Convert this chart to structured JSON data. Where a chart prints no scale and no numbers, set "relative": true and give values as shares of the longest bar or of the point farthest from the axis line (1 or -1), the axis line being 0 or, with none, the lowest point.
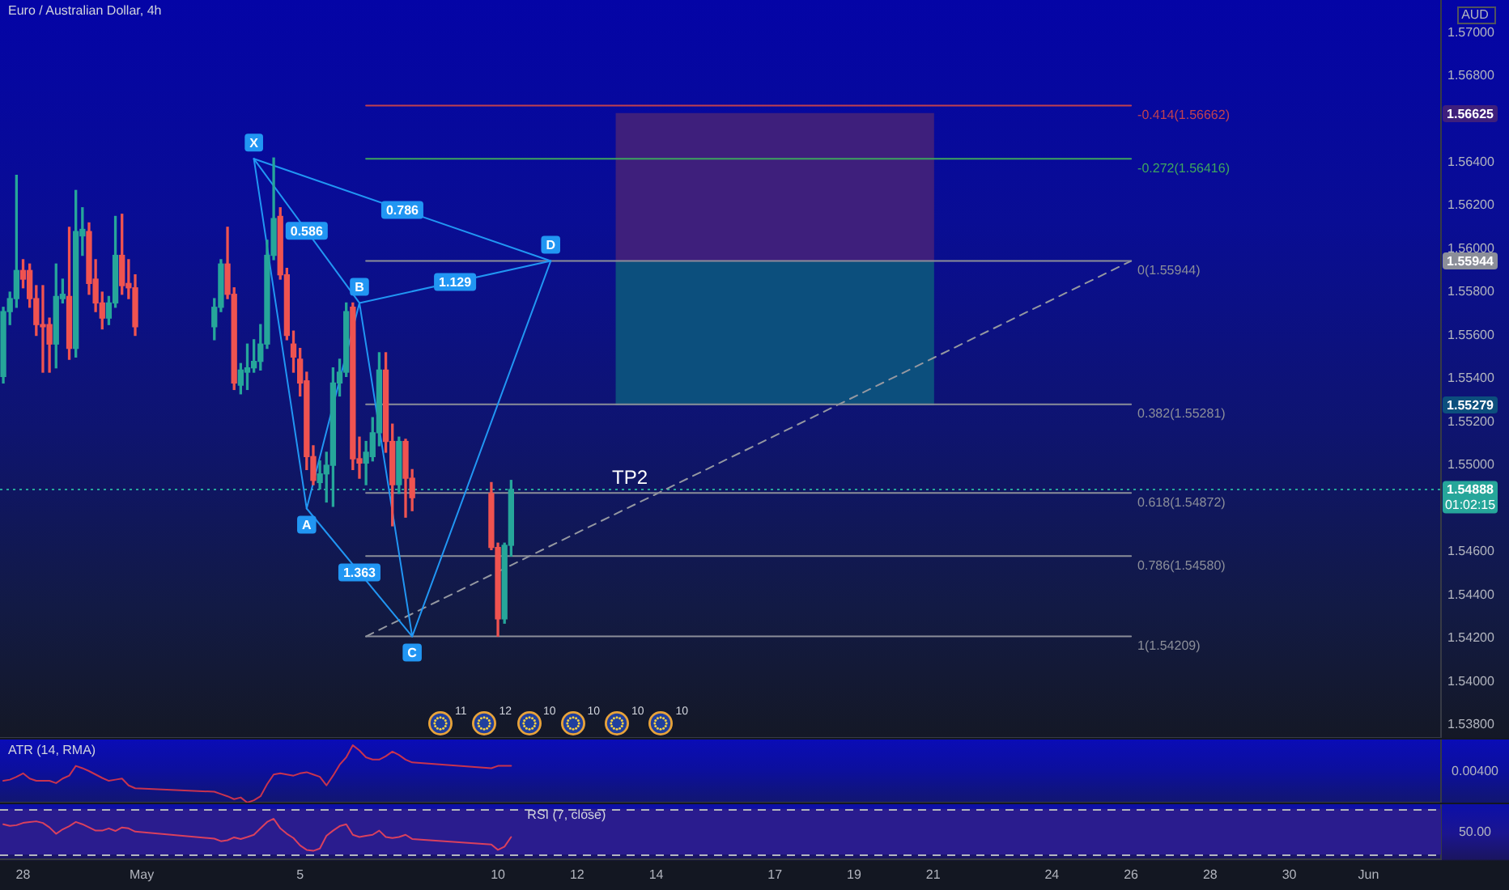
{
  "chart_data": [
    {
      "type": "candlestick",
      "title": "Euro / Australian Dollar, 4h",
      "x": [
        "--04-27T12:00",
        "--04-27T16:00",
        "--04-27T20:00",
        "--04-28T00:00",
        "--04-28T04:00",
        "--04-28T08:00",
        "--04-28T12:00",
        "--04-28T16:00",
        "--04-28T20:00",
        "--04-29T00:00",
        "--04-29T04:00",
        "--04-29T08:00",
        "--04-29T12:00",
        "--04-29T16:00",
        "--04-29T20:00",
        "--04-30T00:00",
        "--04-30T04:00",
        "--04-30T08:00",
        "--04-30T12:00",
        "--04-30T16:00",
        "--04-30T20:00",
        "--05-02T20:00",
        "--05-03T00:00",
        "--05-03T04:00",
        "--05-03T08:00",
        "--05-03T12:00",
        "--05-03T16:00",
        "--05-03T20:00",
        "--05-04T00:00",
        "--05-04T04:00",
        "--05-04T08:00",
        "--05-04T12:00",
        "--05-04T16:00",
        "--05-04T20:00",
        "--05-05T00:00",
        "--05-05T04:00",
        "--05-05T08:00",
        "--05-05T12:00",
        "--05-05T16:00",
        "--05-05T20:00",
        "--05-06T00:00",
        "--05-06T04:00",
        "--05-06T08:00",
        "--05-06T12:00",
        "--05-06T16:00",
        "--05-06T20:00",
        "--05-07T00:00",
        "--05-07T04:00",
        "--05-07T08:00",
        "--05-07T12:00",
        "--05-07T16:00",
        "--05-07T20:00",
        "--05-09T20:00",
        "--05-10T00:00",
        "--05-10T04:00",
        "--05-10T08:00"
      ],
      "ohlc": [
        [
          1.5541,
          1.5573,
          1.5538,
          1.5571
        ],
        [
          1.5571,
          1.558,
          1.5565,
          1.5577
        ],
        [
          1.5577,
          1.5634,
          1.5573,
          1.559
        ],
        [
          1.559,
          1.5595,
          1.5582,
          1.5586
        ],
        [
          1.559,
          1.5593,
          1.5573,
          1.5577
        ],
        [
          1.5577,
          1.5583,
          1.556,
          1.5565
        ],
        [
          1.5565,
          1.5583,
          1.5543,
          1.5564
        ],
        [
          1.5565,
          1.5568,
          1.5543,
          1.5556
        ],
        [
          1.5556,
          1.5593,
          1.5545,
          1.5578
        ],
        [
          1.5577,
          1.5586,
          1.5575,
          1.5579
        ],
        [
          1.5578,
          1.561,
          1.5549,
          1.5554
        ],
        [
          1.5554,
          1.5627,
          1.555,
          1.5608
        ],
        [
          1.5606,
          1.5619,
          1.5597,
          1.5609
        ],
        [
          1.5608,
          1.5612,
          1.5579,
          1.5584
        ],
        [
          1.5586,
          1.5595,
          1.5571,
          1.5575
        ],
        [
          1.5575,
          1.558,
          1.5563,
          1.5568
        ],
        [
          1.5568,
          1.5578,
          1.5565,
          1.5575
        ],
        [
          1.5575,
          1.5615,
          1.5573,
          1.5597
        ],
        [
          1.5597,
          1.5616,
          1.5579,
          1.5583
        ],
        [
          1.5584,
          1.5595,
          1.5577,
          1.5582
        ],
        [
          1.5582,
          1.5588,
          1.556,
          1.5564
        ],
        [
          1.5564,
          1.5577,
          1.5558,
          1.5573
        ],
        [
          1.5573,
          1.5595,
          1.5571,
          1.5593
        ],
        [
          1.5593,
          1.561,
          1.5577,
          1.5579
        ],
        [
          1.5579,
          1.5582,
          1.5535,
          1.5538
        ],
        [
          1.5537,
          1.5547,
          1.5533,
          1.5544
        ],
        [
          1.5543,
          1.5556,
          1.5535,
          1.5545
        ],
        [
          1.5545,
          1.5558,
          1.5543,
          1.5548
        ],
        [
          1.5548,
          1.5565,
          1.5544,
          1.5556
        ],
        [
          1.5556,
          1.5604,
          1.5554,
          1.5597
        ],
        [
          1.5597,
          1.5642,
          1.5595,
          1.5614
        ],
        [
          1.5615,
          1.5619,
          1.5586,
          1.5588
        ],
        [
          1.5588,
          1.5591,
          1.5558,
          1.556
        ],
        [
          1.5556,
          1.5562,
          1.5543,
          1.555
        ],
        [
          1.5549,
          1.5554,
          1.5532,
          1.5538
        ],
        [
          1.5539,
          1.5543,
          1.5498,
          1.5504
        ],
        [
          1.5504,
          1.5509,
          1.5491,
          1.5493
        ],
        [
          1.5492,
          1.5502,
          1.5489,
          1.5496
        ],
        [
          1.5496,
          1.5506,
          1.5483,
          1.55
        ],
        [
          1.55,
          1.5545,
          1.5481,
          1.5538
        ],
        [
          1.5538,
          1.5549,
          1.5532,
          1.5543
        ],
        [
          1.5543,
          1.5575,
          1.5541,
          1.5571
        ],
        [
          1.5573,
          1.5575,
          1.5498,
          1.5503
        ],
        [
          1.5503,
          1.5513,
          1.5494,
          1.5501
        ],
        [
          1.5501,
          1.5511,
          1.5491,
          1.5506
        ],
        [
          1.5504,
          1.5522,
          1.5502,
          1.5515
        ],
        [
          1.5515,
          1.5552,
          1.5509,
          1.5544
        ],
        [
          1.5544,
          1.5552,
          1.5506,
          1.5511
        ],
        [
          1.5511,
          1.5519,
          1.5472,
          1.5491
        ],
        [
          1.5491,
          1.5513,
          1.5487,
          1.5511
        ],
        [
          1.5511,
          1.5512,
          1.5476,
          1.5494
        ],
        [
          1.5494,
          1.5498,
          1.5479,
          1.5485
        ],
        [
          1.5487,
          1.5492,
          1.5461,
          1.5462
        ],
        [
          1.5462,
          1.5464,
          1.5421,
          1.5429
        ],
        [
          1.5429,
          1.5464,
          1.5427,
          1.5463
        ],
        [
          1.5463,
          1.5493,
          1.5458,
          1.54888
        ]
      ],
      "colors": [
        "#26a69a",
        "#26a69a",
        "#26a69a",
        "#ef5350",
        "#ef5350",
        "#ef5350",
        "#ef5350",
        "#ef5350",
        "#26a69a",
        "#26a69a",
        "#ef5350",
        "#26a69a",
        "#26a69a",
        "#ef5350",
        "#ef5350",
        "#ef5350",
        "#26a69a",
        "#26a69a",
        "#ef5350",
        "#ef5350",
        "#ef5350",
        "#26a69a",
        "#26a69a",
        "#ef5350",
        "#ef5350",
        "#26a69a",
        "#26a69a",
        "#26a69a",
        "#26a69a",
        "#26a69a",
        "#26a69a",
        "#ef5350",
        "#ef5350",
        "#ef5350",
        "#ef5350",
        "#ef5350",
        "#ef5350",
        "#26a69a",
        "#26a69a",
        "#26a69a",
        "#26a69a",
        "#26a69a",
        "#ef5350",
        "#ef5350",
        "#26a69a",
        "#26a69a",
        "#26a69a",
        "#ef5350",
        "#ef5350",
        "#26a69a",
        "#ef5350",
        "#ef5350",
        "#ef5350",
        "#ef5350",
        "#26a69a",
        "#26a69a"
      ],
      "series": [
        {
          "type": "line",
          "color": "#2196f3",
          "x": [
            "--05-03T20:00",
            "--05-05T04:00",
            "--05-06T12:00",
            "--05-07T20:00",
            "--05-11T08:00"
          ],
          "values": [
            1.56416,
            1.548,
            1.5575,
            1.54209,
            1.55944
          ]
        },
        {
          "type": "line",
          "color": "#2196f3",
          "x": [
            "--05-03T20:00",
            "--05-06T12:00"
          ],
          "values": [
            1.56416,
            1.5575
          ]
        },
        {
          "type": "line",
          "color": "#2196f3",
          "x": [
            "--05-05T04:00",
            "--05-07T20:00"
          ],
          "values": [
            1.548,
            1.54209
          ]
        },
        {
          "type": "line",
          "color": "#2196f3",
          "x": [
            "--05-06T12:00",
            "--05-11T08:00"
          ],
          "values": [
            1.5575,
            1.55944
          ]
        },
        {
          "type": "line",
          "color": "#2196f3",
          "x": [
            "--05-03T20:00",
            "--05-11T08:00"
          ],
          "values": [
            1.56416,
            1.55944
          ]
        },
        {
          "type": "line",
          "name": "-0.414(1.56662)",
          "color": "#c2404f",
          "x": [
            "--05-06T16:00",
            "--05-26T00:00"
          ],
          "values": [
            1.56662,
            1.56662
          ]
        },
        {
          "type": "line",
          "name": "-0.272(1.56416)",
          "color": "#3ea55e",
          "x": [
            "--05-06T16:00",
            "--05-26T00:00"
          ],
          "values": [
            1.56416,
            1.56416
          ]
        },
        {
          "type": "line",
          "name": "0(1.55944)",
          "color": "#8b8e99",
          "x": [
            "--05-06T16:00",
            "--05-26T00:00"
          ],
          "values": [
            1.55944,
            1.55944
          ]
        },
        {
          "type": "line",
          "name": "0.382(1.55281)",
          "color": "#8b8e99",
          "x": [
            "--05-06T16:00",
            "--05-26T00:00"
          ],
          "values": [
            1.55281,
            1.55281
          ]
        },
        {
          "type": "line",
          "name": "0.618(1.54872)",
          "color": "#8b8e99",
          "x": [
            "--05-06T16:00",
            "--05-26T00:00"
          ],
          "values": [
            1.54872,
            1.54872
          ]
        },
        {
          "type": "line",
          "name": "0.786(1.54580)",
          "color": "#8b8e99",
          "x": [
            "--05-06T16:00",
            "--05-26T00:00"
          ],
          "values": [
            1.5458,
            1.5458
          ]
        },
        {
          "type": "line",
          "name": "1(1.54209)",
          "color": "#8b8e99",
          "x": [
            "--05-06T16:00",
            "--05-26T00:00"
          ],
          "values": [
            1.54209,
            1.54209
          ]
        },
        {
          "type": "line",
          "color": "#9598a1",
          "line_style": "dashed",
          "x": [
            "--05-06T16:00",
            "--05-26T00:00"
          ],
          "values": [
            1.54209,
            1.55944
          ]
        },
        {
          "type": "bar",
          "color": "#3e1f7c",
          "x": [
            "--05-17T00:00"
          ],
          "values": [
            0.00681
          ],
          "base": [
            1.55944
          ]
        },
        {
          "type": "bar",
          "color": "#0c4f7d",
          "x": [
            "--05-17T00:00"
          ],
          "values": [
            0.00665
          ],
          "base": [
            1.55279
          ]
        }
      ],
      "xlim": [
        "--04-27T10:00",
        "--06-02T20:00"
      ],
      "ylim": [
        1.5374,
        1.5715
      ],
      "yticks": [
        {
          "value": 1.538,
          "label": "1.53800"
        },
        {
          "value": 1.54,
          "label": "1.54000"
        },
        {
          "value": 1.542,
          "label": "1.54200"
        },
        {
          "value": 1.544,
          "label": "1.54400"
        },
        {
          "value": 1.546,
          "label": "1.54600"
        },
        {
          "value": 1.55,
          "label": "1.55000"
        },
        {
          "value": 1.552,
          "label": "1.55200"
        },
        {
          "value": 1.554,
          "label": "1.55400"
        },
        {
          "value": 1.556,
          "label": "1.55600"
        },
        {
          "value": 1.558,
          "label": "1.55800"
        },
        {
          "value": 1.56,
          "label": "1.56000"
        },
        {
          "value": 1.562,
          "label": "1.56200"
        },
        {
          "value": 1.564,
          "label": "1.56400"
        },
        {
          "value": 1.568,
          "label": "1.56800"
        },
        {
          "value": 1.57,
          "label": "1.57000"
        }
      ],
      "tick_labels": "y",
      "ref_lines": [
        {
          "axis": "y",
          "value": 1.54888,
          "label": "1.54888",
          "color": "#26a69a",
          "line_style": "dotted"
        }
      ],
      "annotations": [
        "AUD",
        "01:02:15",
        "11",
        "12",
        "10",
        "10",
        "10",
        "10",
        {
          "text": "1.56625",
          "y": 1.56625
        },
        {
          "text": "1.55944",
          "y": 1.55944
        },
        {
          "text": "1.55279",
          "y": 1.55279
        },
        {
          "text": "X",
          "x": "--05-03T20:00",
          "y": 1.56416
        },
        {
          "text": "A",
          "x": "--05-05T04:00",
          "y": 1.548
        },
        {
          "text": "B",
          "x": "--05-06T12:00",
          "y": 1.5575
        },
        {
          "text": "C",
          "x": "--05-07T20:00",
          "y": 1.54209
        },
        {
          "text": "D",
          "x": "--05-11T08:00",
          "y": 1.55944
        },
        {
          "text": "0.586",
          "x": "--05-05T04:00",
          "y": 1.56083
        },
        {
          "text": "0.786",
          "x": "--05-07T14:00",
          "y": 1.5618
        },
        {
          "text": "1.129",
          "x": "--05-08T22:00",
          "y": 1.55847
        },
        {
          "text": "1.363",
          "x": "--05-06T12:00",
          "y": 1.54505
        },
        {
          "text": "TP2",
          "x": "--05-13T08:00",
          "y": 1.54872
        }
      ]
    },
    {
      "type": "line",
      "title": "ATR (14, RMA)",
      "relative": true,
      "x": [
        "--04-27T12:00",
        "--04-27T16:00",
        "--04-27T20:00",
        "--04-28T00:00",
        "--04-28T04:00",
        "--04-28T08:00",
        "--04-28T12:00",
        "--04-28T16:00",
        "--04-28T20:00",
        "--04-29T00:00",
        "--04-29T04:00",
        "--04-29T08:00",
        "--04-29T12:00",
        "--04-29T16:00",
        "--04-29T20:00",
        "--04-30T00:00",
        "--04-30T04:00",
        "--04-30T08:00",
        "--04-30T12:00",
        "--04-30T16:00",
        "--04-30T20:00",
        "--05-02T20:00",
        "--05-03T00:00",
        "--05-03T04:00",
        "--05-03T08:00",
        "--05-03T12:00",
        "--05-03T16:00",
        "--05-03T20:00",
        "--05-04T00:00",
        "--05-04T04:00",
        "--05-04T08:00",
        "--05-04T12:00",
        "--05-04T16:00",
        "--05-04T20:00",
        "--05-05T00:00",
        "--05-05T04:00",
        "--05-05T08:00",
        "--05-05T12:00",
        "--05-05T16:00",
        "--05-05T20:00",
        "--05-06T00:00",
        "--05-06T04:00",
        "--05-06T08:00",
        "--05-06T12:00",
        "--05-06T16:00",
        "--05-06T20:00",
        "--05-07T00:00",
        "--05-07T04:00",
        "--05-07T08:00",
        "--05-07T12:00",
        "--05-07T16:00",
        "--05-07T20:00",
        "--05-09T20:00",
        "--05-10T00:00",
        "--05-10T04:00",
        "--05-10T08:00"
      ],
      "series": [
        {
          "color": "#c8334f",
          "values": [
            0.38,
            0.4,
            0.45,
            0.51,
            0.42,
            0.38,
            0.38,
            0.38,
            0.34,
            0.42,
            0.47,
            0.64,
            0.6,
            0.55,
            0.49,
            0.43,
            0.38,
            0.4,
            0.42,
            0.3,
            0.25,
            0.19,
            0.15,
            0.11,
            0.06,
            0.09,
            0,
            0.04,
            0.11,
            0.32,
            0.49,
            0.51,
            0.49,
            0.47,
            0.51,
            0.53,
            0.49,
            0.45,
            0.3,
            0.47,
            0.66,
            0.79,
            1,
            0.91,
            0.79,
            0.75,
            0.75,
            0.81,
            0.89,
            0.83,
            0.75,
            0.7,
            0.6,
            0.64,
            0.64,
            0.64
          ]
        }
      ],
      "xlim": [
        "--04-27T10:00",
        "--06-02T20:00"
      ],
      "tick_labels": "y",
      "annotations": [
        "0.00400"
      ]
    },
    {
      "type": "line",
      "title": "RSI (7, close)",
      "relative": true,
      "x": [
        "--04-27T12:00",
        "--04-27T16:00",
        "--04-27T20:00",
        "--04-28T00:00",
        "--04-28T04:00",
        "--04-28T08:00",
        "--04-28T12:00",
        "--04-28T16:00",
        "--04-28T20:00",
        "--04-29T00:00",
        "--04-29T04:00",
        "--04-29T08:00",
        "--04-29T12:00",
        "--04-29T16:00",
        "--04-29T20:00",
        "--04-30T00:00",
        "--04-30T04:00",
        "--04-30T08:00",
        "--04-30T12:00",
        "--04-30T16:00",
        "--04-30T20:00",
        "--05-02T20:00",
        "--05-03T00:00",
        "--05-03T04:00",
        "--05-03T08:00",
        "--05-03T12:00",
        "--05-03T16:00",
        "--05-03T20:00",
        "--05-04T00:00",
        "--05-04T04:00",
        "--05-04T08:00",
        "--05-04T12:00",
        "--05-04T16:00",
        "--05-04T20:00",
        "--05-05T00:00",
        "--05-05T04:00",
        "--05-05T08:00",
        "--05-05T12:00",
        "--05-05T16:00",
        "--05-05T20:00",
        "--05-06T00:00",
        "--05-06T04:00",
        "--05-06T08:00",
        "--05-06T12:00",
        "--05-06T16:00",
        "--05-06T20:00",
        "--05-07T00:00",
        "--05-07T04:00",
        "--05-07T08:00",
        "--05-07T12:00",
        "--05-07T16:00",
        "--05-07T20:00",
        "--05-09T20:00",
        "--05-10T00:00",
        "--05-10T04:00",
        "--05-10T08:00"
      ],
      "series": [
        {
          "color": "#d9405e",
          "values": [
            0.83,
            0.78,
            0.8,
            0.87,
            0.9,
            0.92,
            0.87,
            0.73,
            0.53,
            0.67,
            0.77,
            0.9,
            0.83,
            0.73,
            0.63,
            0.63,
            0.7,
            0.62,
            0.73,
            0.7,
            0.6,
            0.38,
            0.3,
            0.33,
            0.42,
            0.37,
            0.43,
            0.5,
            0.7,
            0.9,
            1,
            0.7,
            0.53,
            0.4,
            0.17,
            0.03,
            0,
            0.07,
            0.47,
            0.63,
            0.77,
            0.83,
            0.5,
            0.43,
            0.47,
            0.5,
            0.63,
            0.43,
            0.4,
            0.43,
            0.5,
            0.37,
            0.2,
            0.03,
            0.13,
            0.43
          ]
        }
      ],
      "xlim": [
        "--04-27T10:00",
        "--06-02T20:00"
      ],
      "xticks": [
        {
          "value": "--04-28",
          "label": "28"
        },
        {
          "value": "--05-01",
          "label": "May"
        },
        {
          "value": "--05-05",
          "label": "5"
        },
        {
          "value": "--05-10",
          "label": "10"
        },
        {
          "value": "--05-12",
          "label": "12"
        },
        {
          "value": "--05-14",
          "label": "14"
        },
        {
          "value": "--05-17",
          "label": "17"
        },
        {
          "value": "--05-19",
          "label": "19"
        },
        {
          "value": "--05-21",
          "label": "21"
        },
        {
          "value": "--05-24",
          "label": "24"
        },
        {
          "value": "--05-26",
          "label": "26"
        },
        {
          "value": "--05-28",
          "label": "28"
        },
        {
          "value": "--05-30",
          "label": "30"
        },
        {
          "value": "--06-01",
          "label": "Jun"
        }
      ],
      "ref_lines": [
        {
          "axis": "y",
          "value": 1.31,
          "color": "#b2b5be",
          "line_style": "dashed"
        },
        {
          "axis": "y",
          "value": -0.12,
          "color": "#b2b5be",
          "line_style": "dashed"
        }
      ],
      "bands": [
        {
          "axis": "y",
          "from": -0.12,
          "to": 1.31,
          "color": "#2a1c8e"
        }
      ],
      "annotations": [
        "50.00"
      ]
    }
  ]
}
